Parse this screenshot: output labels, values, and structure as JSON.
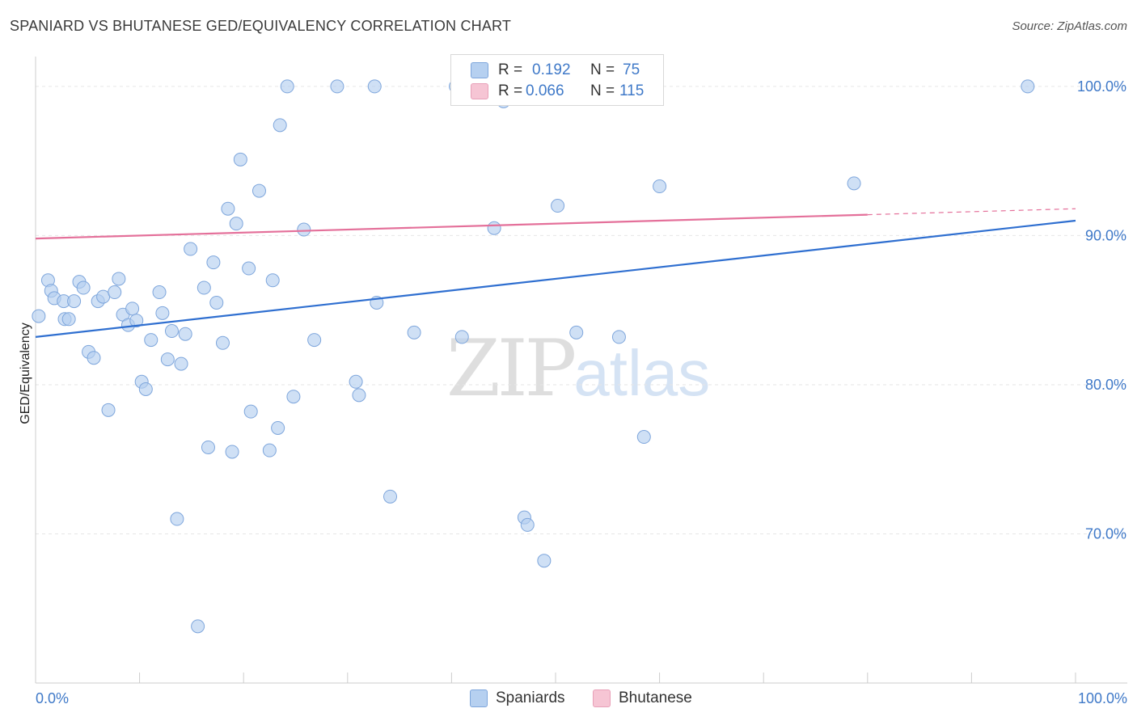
{
  "header": {
    "title": "SPANIARD VS BHUTANESE GED/EQUIVALENCY CORRELATION CHART",
    "source": "Source: ZipAtlas.com"
  },
  "watermark": {
    "zip": "ZIP",
    "atlas": "atlas"
  },
  "legend": {
    "rows": [
      {
        "r_label": "R =",
        "r_value": "0.192",
        "n_label": "N =",
        "n_value": "75"
      },
      {
        "r_label": "R =",
        "r_value": "0.066",
        "n_label": "N =",
        "n_value": "115"
      }
    ]
  },
  "bottom_legend": {
    "items": [
      {
        "label": "Spaniards"
      },
      {
        "label": "Bhutanese"
      }
    ]
  },
  "colors": {
    "blue_fill": "#b6d0f0",
    "blue_stroke": "#7ea6dc",
    "blue_line": "#2f6fd0",
    "pink_fill": "#f6c5d4",
    "pink_stroke": "#e8a0b8",
    "pink_line": "#e4709a",
    "tick_text": "#3f79c8",
    "grid": "#e6e6e6"
  },
  "chart_data": {
    "type": "scatter",
    "title": "SPANIARD VS BHUTANESE GED/EQUIVALENCY CORRELATION CHART",
    "xlabel": "",
    "ylabel": "GED/Equivalency",
    "xlim": [
      0,
      100
    ],
    "ylim": [
      60.0,
      102.0
    ],
    "x_tick_labels": [
      "0.0%",
      "100.0%"
    ],
    "y_ticks": [
      70,
      80,
      90,
      100
    ],
    "y_tick_labels": [
      "70.0%",
      "80.0%",
      "90.0%",
      "100.0%"
    ],
    "grid": true,
    "legend_position": "top-center",
    "series": [
      {
        "name": "Spaniards",
        "color": "#b6d0f0",
        "trend": {
          "x": [
            0,
            100
          ],
          "y": [
            83.2,
            91.0
          ],
          "solid_to": 100
        },
        "points": [
          [
            0.3,
            84.6
          ],
          [
            1.2,
            87.0
          ],
          [
            1.5,
            86.3
          ],
          [
            1.8,
            85.8
          ],
          [
            2.7,
            85.6
          ],
          [
            2.8,
            84.4
          ],
          [
            3.2,
            84.4
          ],
          [
            3.7,
            85.6
          ],
          [
            4.2,
            86.9
          ],
          [
            4.6,
            86.5
          ],
          [
            5.1,
            82.2
          ],
          [
            5.6,
            81.8
          ],
          [
            6.0,
            85.6
          ],
          [
            6.5,
            85.9
          ],
          [
            7.0,
            78.3
          ],
          [
            7.6,
            86.2
          ],
          [
            8.0,
            87.1
          ],
          [
            8.4,
            84.7
          ],
          [
            8.9,
            84.0
          ],
          [
            9.3,
            85.1
          ],
          [
            9.7,
            84.3
          ],
          [
            10.2,
            80.2
          ],
          [
            10.6,
            79.7
          ],
          [
            11.1,
            83.0
          ],
          [
            11.9,
            86.2
          ],
          [
            12.2,
            84.8
          ],
          [
            12.7,
            81.7
          ],
          [
            13.1,
            83.6
          ],
          [
            13.6,
            71.0
          ],
          [
            14.0,
            81.4
          ],
          [
            14.4,
            83.4
          ],
          [
            14.9,
            89.1
          ],
          [
            15.6,
            63.8
          ],
          [
            16.2,
            86.5
          ],
          [
            16.6,
            75.8
          ],
          [
            17.1,
            88.2
          ],
          [
            17.4,
            85.5
          ],
          [
            18.0,
            82.8
          ],
          [
            18.5,
            91.8
          ],
          [
            18.9,
            75.5
          ],
          [
            19.3,
            90.8
          ],
          [
            19.7,
            95.1
          ],
          [
            20.5,
            87.8
          ],
          [
            20.7,
            78.2
          ],
          [
            21.5,
            93.0
          ],
          [
            22.5,
            75.6
          ],
          [
            22.8,
            87.0
          ],
          [
            23.3,
            77.1
          ],
          [
            23.5,
            97.4
          ],
          [
            24.2,
            100.0
          ],
          [
            24.8,
            79.2
          ],
          [
            25.8,
            90.4
          ],
          [
            26.8,
            83.0
          ],
          [
            29.0,
            100.0
          ],
          [
            30.8,
            80.2
          ],
          [
            31.1,
            79.3
          ],
          [
            32.6,
            100.0
          ],
          [
            32.8,
            85.5
          ],
          [
            34.1,
            72.5
          ],
          [
            36.4,
            83.5
          ],
          [
            40.4,
            100.0
          ],
          [
            41.0,
            83.2
          ],
          [
            44.1,
            90.5
          ],
          [
            45.0,
            99.0
          ],
          [
            47.0,
            71.1
          ],
          [
            47.3,
            70.6
          ],
          [
            48.9,
            68.2
          ],
          [
            49.1,
            100.0
          ],
          [
            50.2,
            92.0
          ],
          [
            52.0,
            83.5
          ],
          [
            56.1,
            83.2
          ],
          [
            58.5,
            76.5
          ],
          [
            60.0,
            93.3
          ],
          [
            78.7,
            93.5
          ],
          [
            95.4,
            100.0
          ]
        ]
      },
      {
        "name": "Bhutanese",
        "color": "#f6c5d4",
        "trend": {
          "x": [
            0,
            100
          ],
          "y": [
            89.8,
            91.8
          ],
          "solid_to": 80
        }
      }
    ]
  }
}
